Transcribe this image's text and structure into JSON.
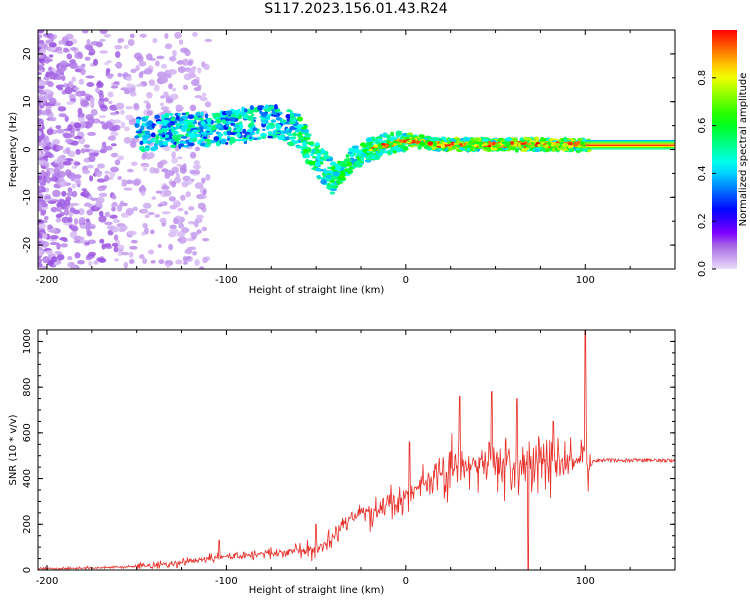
{
  "title": "S117.2023.156.01.43.R24",
  "colors": {
    "snr_line": "#e8302a",
    "axis": "#000000",
    "blob_low": "#b98ff0",
    "blob_mid": "#7a1fe0"
  },
  "chart_data": [
    {
      "type": "heatmap",
      "xlabel": "Height of straight line (km)",
      "ylabel": "Frequency (Hz)",
      "xlim": [
        -205,
        150
      ],
      "ylim": [
        -25,
        25
      ],
      "xticks": [
        -200,
        -100,
        0,
        100
      ],
      "yticks": [
        -20,
        -10,
        0,
        10,
        20
      ],
      "colorbar": {
        "label": "Normalized spectral amplitude",
        "range": [
          0,
          1
        ],
        "ticks": [
          "0.0",
          "0.2",
          "0.4",
          "0.6",
          "0.8"
        ],
        "colormap": "hsv-rainbow"
      },
      "ridge": {
        "x": [
          -150,
          -130,
          -110,
          -90,
          -75,
          -60,
          -50,
          -40,
          -30,
          -20,
          -10,
          0,
          20,
          40,
          60,
          80,
          100,
          150
        ],
        "freq": [
          3,
          4,
          4,
          5,
          6,
          4,
          -2,
          -6,
          -2,
          0,
          1,
          2,
          1,
          1,
          1,
          1,
          1,
          1
        ]
      },
      "band": {
        "x_start": 100,
        "x_end": 150,
        "freq_low": 0,
        "freq_high": 2,
        "amplitude": "1.0"
      }
    },
    {
      "type": "line",
      "xlabel": "Height of straight line (km)",
      "ylabel": "SNR (10 * v/v)",
      "xlim": [
        -205,
        150
      ],
      "ylim": [
        0,
        1050
      ],
      "xticks": [
        -200,
        -100,
        0,
        100
      ],
      "yticks": [
        0,
        200,
        400,
        600,
        800,
        1000
      ],
      "series": [
        {
          "x": [
            -205,
            -180,
            -160,
            -140,
            -120,
            -110,
            -100,
            -90,
            -80,
            -70,
            -60,
            -50,
            -40,
            -30,
            -20,
            -10,
            0,
            10,
            20,
            30,
            40,
            50,
            60,
            70,
            80,
            90,
            100,
            105,
            120,
            150
          ],
          "y": [
            5,
            8,
            12,
            20,
            35,
            50,
            60,
            60,
            70,
            80,
            90,
            90,
            150,
            230,
            260,
            280,
            330,
            380,
            420,
            450,
            460,
            460,
            460,
            460,
            460,
            470,
            480,
            480,
            480,
            480
          ],
          "spikes": [
            {
              "x": -104,
              "y": 130
            },
            {
              "x": -50,
              "y": 200
            },
            {
              "x": 2,
              "y": 560
            },
            {
              "x": 30,
              "y": 760
            },
            {
              "x": 48,
              "y": 780
            },
            {
              "x": 62,
              "y": 750
            },
            {
              "x": 68,
              "y": 0
            },
            {
              "x": 82,
              "y": 650
            },
            {
              "x": 100,
              "y": 1050
            }
          ]
        }
      ]
    }
  ]
}
